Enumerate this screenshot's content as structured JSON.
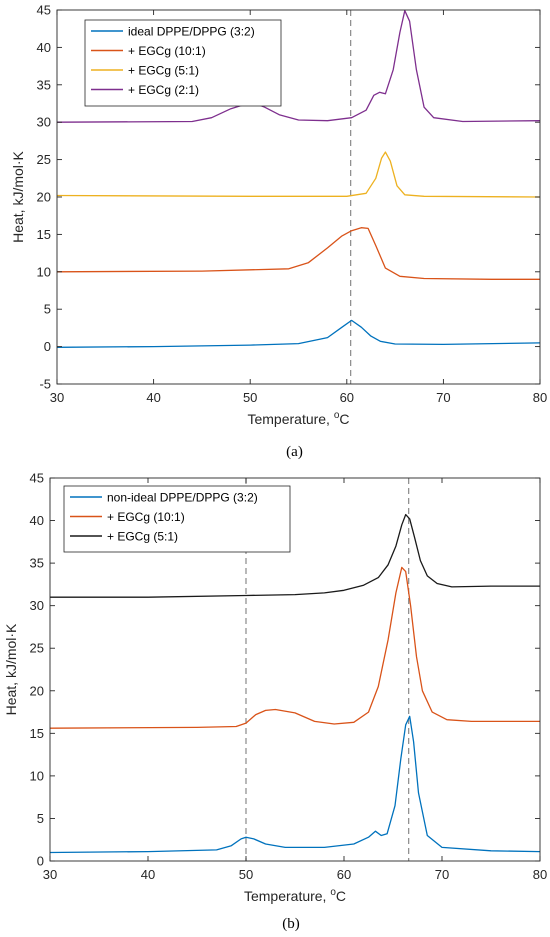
{
  "chart_data": [
    {
      "type": "line",
      "panel_label": "(a)",
      "xlabel_main": "Temperature, ",
      "xlabel_sup": "o",
      "xlabel_unit": "C",
      "ylabel": "Heat, kJ/mol·K",
      "xlim": [
        30,
        80
      ],
      "ylim": [
        -5,
        45
      ],
      "xticks": [
        30,
        40,
        50,
        60,
        70,
        80
      ],
      "yticks": [
        -5,
        0,
        5,
        10,
        15,
        20,
        25,
        30,
        35,
        40,
        45
      ],
      "vlines": [
        60.4
      ],
      "legend_position": "top-left",
      "grid": false,
      "series": [
        {
          "name": "ideal DPPE/DPPG (3:2)",
          "color": "#0072BD",
          "x": [
            30,
            40,
            50,
            55,
            58,
            59.5,
            60.5,
            61.5,
            62.5,
            63.5,
            65,
            70,
            80
          ],
          "y": [
            -0.1,
            0.0,
            0.2,
            0.4,
            1.2,
            2.6,
            3.5,
            2.6,
            1.4,
            0.7,
            0.35,
            0.3,
            0.5
          ]
        },
        {
          "name": "+ EGCg (10:1)",
          "color": "#D95319",
          "x": [
            30,
            45,
            54,
            56,
            58,
            59.5,
            60.5,
            61.5,
            62.2,
            63,
            64,
            65.5,
            68,
            75,
            80
          ],
          "y": [
            10,
            10.1,
            10.4,
            11.2,
            13.2,
            14.8,
            15.5,
            15.9,
            15.8,
            13.5,
            10.5,
            9.4,
            9.1,
            9.0,
            9.0
          ]
        },
        {
          "name": "+ EGCg (5:1)",
          "color": "#EDB120",
          "x": [
            30,
            50,
            60,
            62,
            63,
            63.6,
            64,
            64.5,
            65.2,
            66,
            68,
            80
          ],
          "y": [
            20.2,
            20.1,
            20.1,
            20.5,
            22.5,
            25.2,
            26.0,
            24.8,
            21.5,
            20.3,
            20.1,
            20.0
          ]
        },
        {
          "name": "+ EGCg (2:1)",
          "color": "#7E2F8E",
          "x": [
            30,
            44,
            46,
            48,
            49.5,
            50.5,
            51.5,
            53,
            55,
            58,
            60.5,
            62,
            62.8,
            63.4,
            64,
            64.8,
            65.5,
            66,
            66.5,
            67.2,
            68,
            69,
            72,
            80
          ],
          "y": [
            30,
            30.1,
            30.6,
            31.8,
            32.4,
            32.5,
            32.0,
            31.0,
            30.3,
            30.2,
            30.6,
            31.6,
            33.6,
            34.0,
            33.8,
            37.0,
            42.0,
            44.9,
            43.5,
            37.0,
            32.0,
            30.6,
            30.1,
            30.2
          ]
        }
      ]
    },
    {
      "type": "line",
      "panel_label": "(b)",
      "xlabel_main": "Temperature, ",
      "xlabel_sup": "o",
      "xlabel_unit": "C",
      "ylabel": "Heat, kJ/mol·K",
      "xlim": [
        30,
        80
      ],
      "ylim": [
        0,
        45
      ],
      "xticks": [
        30,
        40,
        50,
        60,
        70,
        80
      ],
      "yticks": [
        0,
        5,
        10,
        15,
        20,
        25,
        30,
        35,
        40,
        45
      ],
      "vlines": [
        50,
        66.6
      ],
      "legend_position": "top-left",
      "grid": false,
      "series": [
        {
          "name": "non-ideal DPPE/DPPG (3:2)",
          "color": "#0072BD",
          "x": [
            30,
            40,
            47,
            48.5,
            49.5,
            50,
            50.8,
            52,
            54,
            58,
            61,
            62.5,
            63.2,
            63.8,
            64.4,
            65.2,
            65.8,
            66.3,
            66.7,
            67.1,
            67.6,
            68.5,
            70,
            75,
            80
          ],
          "y": [
            1.0,
            1.1,
            1.3,
            1.8,
            2.6,
            2.8,
            2.6,
            2.0,
            1.6,
            1.6,
            2.0,
            2.8,
            3.5,
            3.0,
            3.2,
            6.5,
            12.0,
            16.0,
            17.0,
            14.0,
            8.0,
            3.0,
            1.6,
            1.2,
            1.1
          ]
        },
        {
          "name": "+ EGCg (10:1)",
          "color": "#D95319",
          "x": [
            30,
            45,
            49,
            50,
            51,
            52,
            53,
            55,
            57,
            59,
            61,
            62.5,
            63.5,
            64.5,
            65.3,
            65.9,
            66.3,
            66.8,
            67.4,
            68,
            69,
            70.5,
            73,
            80
          ],
          "y": [
            15.6,
            15.7,
            15.8,
            16.2,
            17.2,
            17.7,
            17.8,
            17.4,
            16.4,
            16.1,
            16.3,
            17.5,
            20.5,
            26.0,
            31.5,
            34.5,
            34.0,
            30.0,
            24.0,
            20.0,
            17.5,
            16.6,
            16.4,
            16.4
          ]
        },
        {
          "name": "+ EGCg (5:1)",
          "color": "#1A1A1A",
          "x": [
            30,
            40,
            50,
            55,
            58,
            60,
            62,
            63.5,
            64.5,
            65.3,
            65.9,
            66.3,
            66.7,
            67.2,
            67.8,
            68.5,
            69.5,
            71,
            75,
            80
          ],
          "y": [
            31.0,
            31.0,
            31.2,
            31.3,
            31.5,
            31.8,
            32.4,
            33.3,
            34.8,
            37.0,
            39.5,
            40.7,
            40.2,
            38.0,
            35.3,
            33.5,
            32.6,
            32.2,
            32.3,
            32.3
          ]
        }
      ]
    }
  ]
}
